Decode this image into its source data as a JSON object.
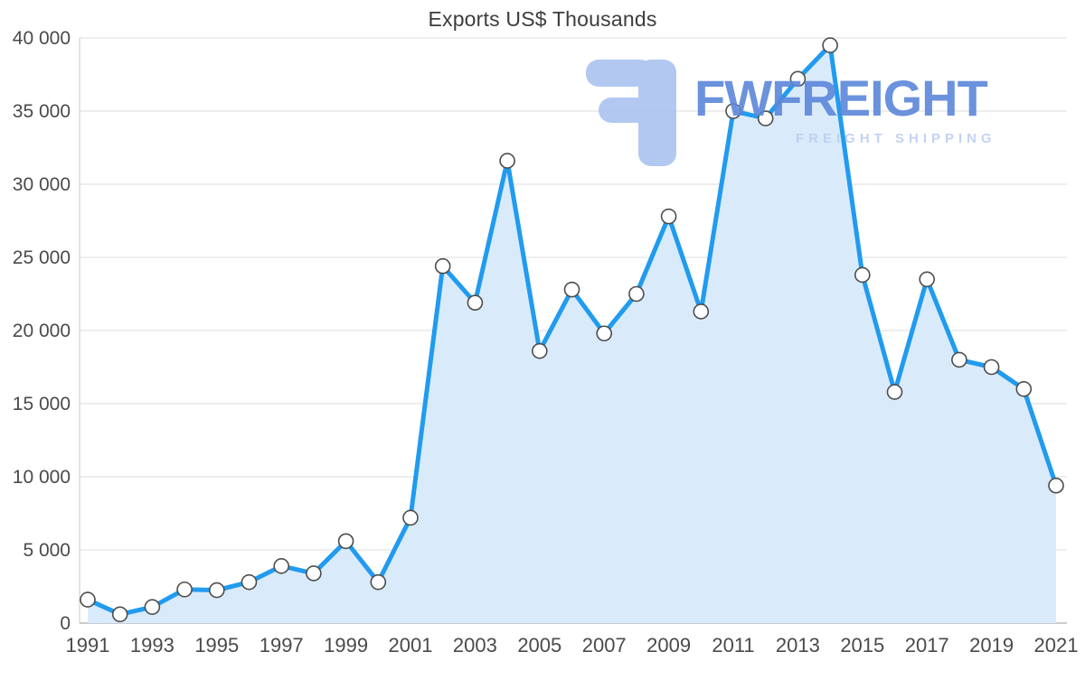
{
  "title": "Exports US$ Thousands",
  "watermark": {
    "brand": "FWFREIGHT",
    "tagline": "FREIGHT SHIPPING",
    "brand_color": "#5c87da",
    "tagline_color": "#bccff2",
    "logo_color": "#aac3f0"
  },
  "chart_data": {
    "type": "area",
    "title": "Exports US$ Thousands",
    "x": [
      1991,
      1992,
      1993,
      1994,
      1995,
      1996,
      1997,
      1998,
      1999,
      2000,
      2001,
      2002,
      2003,
      2004,
      2005,
      2006,
      2007,
      2008,
      2009,
      2010,
      2011,
      2012,
      2013,
      2014,
      2015,
      2016,
      2017,
      2018,
      2019,
      2020,
      2021
    ],
    "values": [
      1600,
      600,
      1100,
      2300,
      2250,
      2800,
      3900,
      3400,
      5600,
      2800,
      7200,
      24400,
      21900,
      31600,
      18600,
      22800,
      19800,
      22500,
      27800,
      21300,
      35000,
      34500,
      37200,
      39500,
      23800,
      15800,
      23500,
      18000,
      17500,
      16000,
      9400
    ],
    "xlabel": "",
    "ylabel": "",
    "ylim": [
      0,
      40000
    ],
    "ytick_interval": 5000,
    "ytick_labels": [
      "0",
      "5 000",
      "10 000",
      "15 000",
      "20 000",
      "25 000",
      "30 000",
      "35 000",
      "40 000"
    ],
    "xtick_years": [
      1991,
      1993,
      1995,
      1997,
      1999,
      2001,
      2003,
      2005,
      2007,
      2009,
      2011,
      2013,
      2015,
      2017,
      2019,
      2021
    ],
    "grid": "horizontal",
    "legend": "none",
    "line_color": "#219bef",
    "area_color": "#d9ebfb",
    "marker_fill": "#ffffff",
    "marker_stroke": "#4d4d4d",
    "axis_color": "#c9c9c9",
    "baseline_color": "#9a9a9a",
    "grid_color": "#dcdcdc",
    "label_color": "#4a4a4a"
  }
}
